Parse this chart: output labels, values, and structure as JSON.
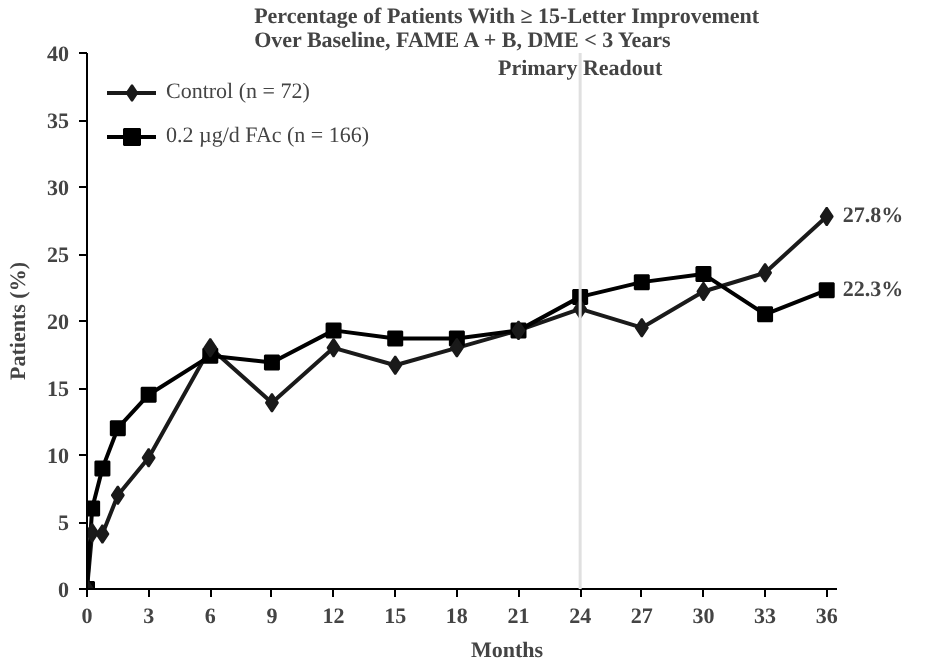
{
  "chart_data": {
    "type": "line",
    "title": "Percentage of Patients With ≥ 15-Letter Improvement\nOver Baseline, FAME A + B, DME < 3 Years",
    "xlabel": "Months",
    "ylabel": "Patients (%)",
    "x": [
      0,
      0.25,
      0.75,
      1.5,
      3,
      6,
      9,
      12,
      15,
      18,
      21,
      24,
      27,
      30,
      33,
      36
    ],
    "series": [
      {
        "name": "Control (n = 72)",
        "color": "#1a1a1a",
        "marker": "diamond",
        "values": [
          0,
          4.2,
          4.1,
          7,
          9.8,
          18,
          13.9,
          18,
          16.7,
          18,
          19.3,
          20.9,
          19.5,
          22.2,
          23.6,
          27.8
        ],
        "value_labels": [
          null,
          null,
          null,
          null,
          null,
          null,
          null,
          null,
          null,
          null,
          null,
          null,
          null,
          null,
          null,
          "27.8%"
        ]
      },
      {
        "name": "0.2 µg/d FAc (n = 166)",
        "color": "#000000",
        "marker": "square",
        "values": [
          0,
          6,
          9,
          12,
          14.5,
          17.4,
          16.9,
          19.3,
          18.7,
          18.7,
          19.3,
          21.8,
          22.9,
          23.5,
          20.5,
          22.3
        ],
        "value_labels": [
          null,
          null,
          null,
          null,
          null,
          null,
          null,
          null,
          null,
          null,
          null,
          null,
          null,
          null,
          null,
          "22.3%"
        ]
      }
    ],
    "xlim": [
      0,
      36.5
    ],
    "ylim": [
      0,
      40
    ],
    "xticks": [
      0,
      3,
      6,
      9,
      12,
      15,
      18,
      21,
      24,
      27,
      30,
      33,
      36
    ],
    "yticks": [
      0,
      5,
      10,
      15,
      20,
      25,
      30,
      35,
      40
    ],
    "ref_lines": [
      {
        "axis": "x",
        "value": 24,
        "label": "Primary Readout",
        "color": "#e0e0e0"
      }
    ],
    "grid": false,
    "legend": "top left",
    "line_style": "solid"
  }
}
